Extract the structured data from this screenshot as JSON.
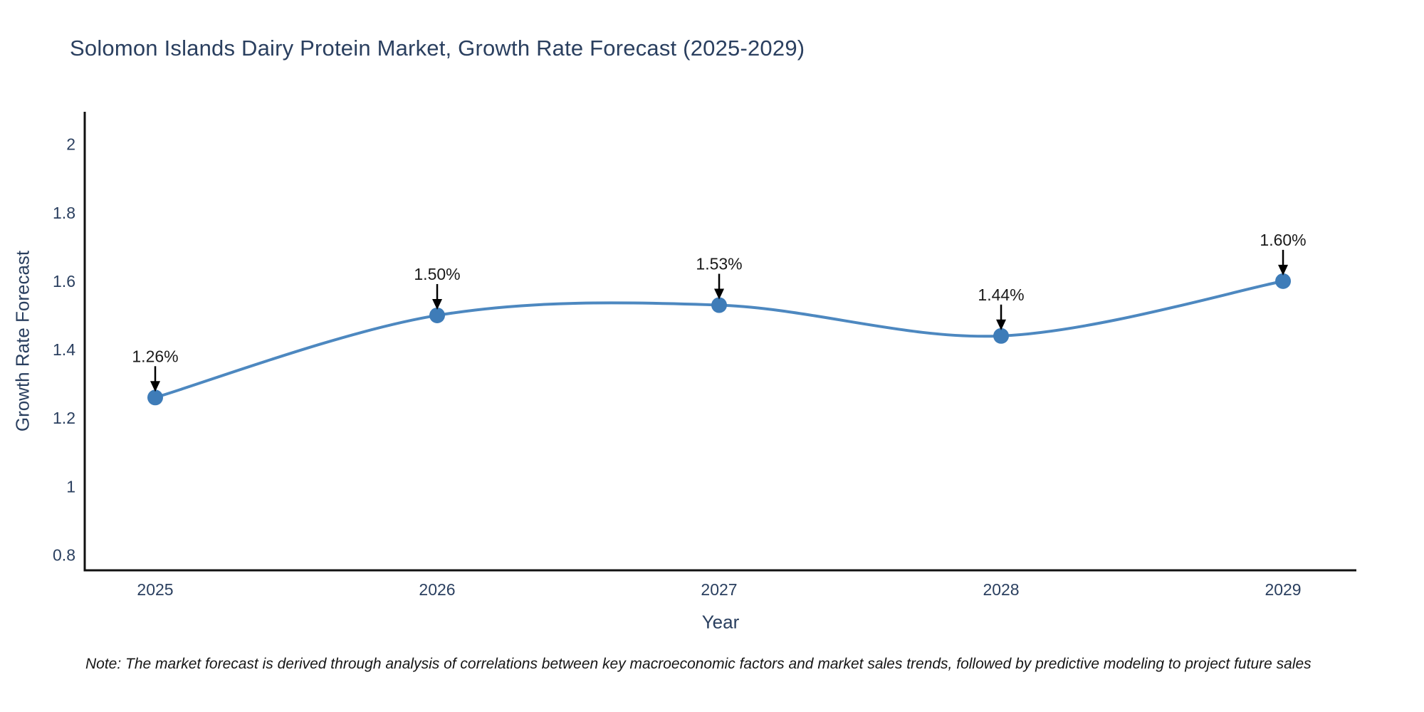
{
  "chart_data": {
    "type": "line",
    "title": "Solomon Islands Dairy Protein Market, Growth Rate Forecast (2025-2029)",
    "note": "Note: The market forecast is derived through analysis of correlations between key macroeconomic factors and market sales trends, followed by predictive modeling to project future sales",
    "xlabel": "Year",
    "ylabel": "Growth Rate Forecast",
    "x": [
      2025,
      2026,
      2027,
      2028,
      2029
    ],
    "x_tick_labels": [
      "2025",
      "2026",
      "2027",
      "2028",
      "2029"
    ],
    "values": [
      1.26,
      1.5,
      1.53,
      1.44,
      1.6
    ],
    "point_labels": [
      "1.26%",
      "1.50%",
      "1.53%",
      "1.44%",
      "1.60%"
    ],
    "y_ticks": [
      0.8,
      1,
      1.2,
      1.4,
      1.6,
      1.8,
      2
    ],
    "y_tick_labels": [
      "0.8",
      "1",
      "1.2",
      "1.4",
      "1.6",
      "1.8",
      "2"
    ],
    "xlim": [
      2024.75,
      2029.26
    ],
    "ylim": [
      0.755,
      2.095
    ],
    "line_shape": "spline",
    "grid": false,
    "legend": "none",
    "colors": {
      "line": "#4d88c0",
      "marker": "#3e7cb8",
      "axis_line": "#111111",
      "axis_text": "#2a3f5f",
      "annotation_text": "#1a1a1a",
      "arrow": "#000000",
      "background": "#ffffff"
    }
  }
}
